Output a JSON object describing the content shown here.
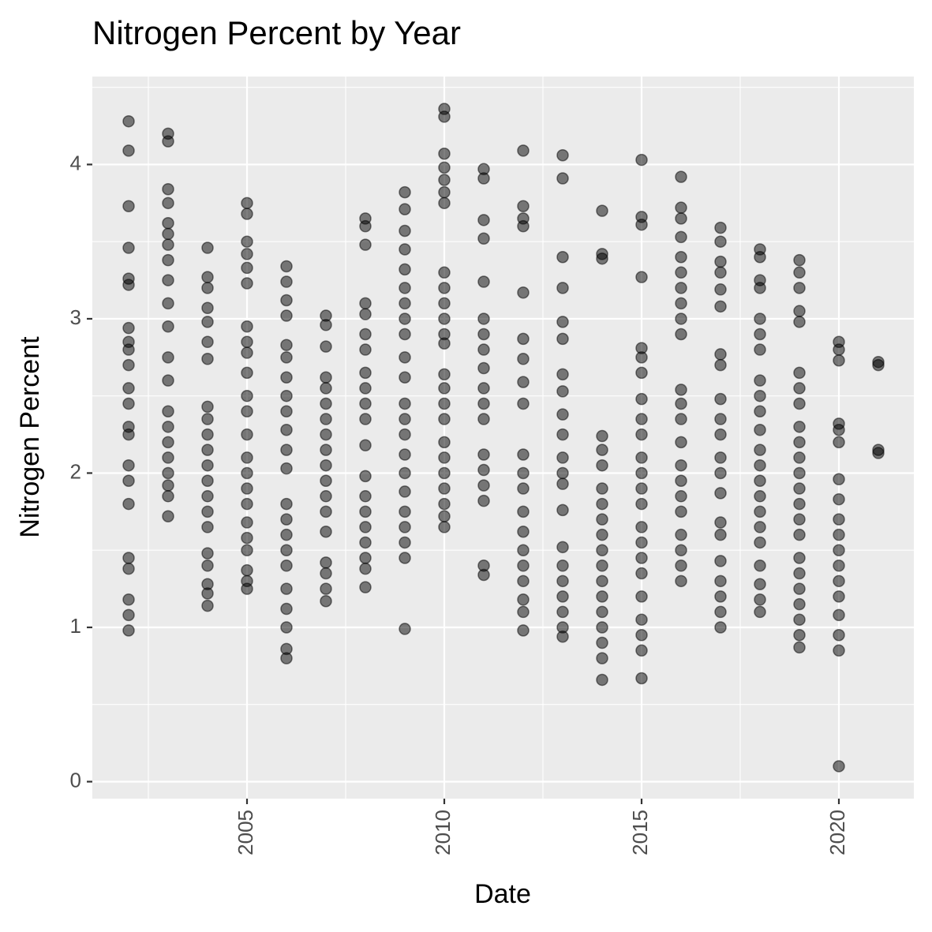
{
  "chart_data": {
    "type": "scatter",
    "title": "Nitrogen Percent by Year",
    "x_label": "Date",
    "y_label": "Nitrogen Percent",
    "color": "#000000",
    "opacity": 0.5,
    "grid": true,
    "xlim": [
      2001.08,
      2021.9
    ],
    "xticks": [
      2005,
      2010,
      2015,
      2020
    ],
    "ylim": [
      -0.11,
      4.57
    ],
    "yticks": [
      0,
      1,
      2,
      3,
      4
    ],
    "x": [
      2002,
      2002,
      2002,
      2002,
      2002,
      2002,
      2002,
      2002,
      2002,
      2002,
      2002,
      2002,
      2002,
      2002,
      2002,
      2002,
      2002,
      2002,
      2002,
      2002,
      2002,
      2002,
      2003,
      2003,
      2003,
      2003,
      2003,
      2003,
      2003,
      2003,
      2003,
      2003,
      2003,
      2003,
      2003,
      2003,
      2003,
      2003,
      2003,
      2003,
      2003,
      2003,
      2003,
      2004,
      2004,
      2004,
      2004,
      2004,
      2004,
      2004,
      2004,
      2004,
      2004,
      2004,
      2004,
      2004,
      2004,
      2004,
      2004,
      2004,
      2004,
      2004,
      2004,
      2004,
      2005,
      2005,
      2005,
      2005,
      2005,
      2005,
      2005,
      2005,
      2005,
      2005,
      2005,
      2005,
      2005,
      2005,
      2005,
      2005,
      2005,
      2005,
      2005,
      2005,
      2005,
      2005,
      2005,
      2006,
      2006,
      2006,
      2006,
      2006,
      2006,
      2006,
      2006,
      2006,
      2006,
      2006,
      2006,
      2006,
      2006,
      2006,
      2006,
      2006,
      2006,
      2006,
      2006,
      2006,
      2006,
      2007,
      2007,
      2007,
      2007,
      2007,
      2007,
      2007,
      2007,
      2007,
      2007,
      2007,
      2007,
      2007,
      2007,
      2007,
      2007,
      2007,
      2007,
      2008,
      2008,
      2008,
      2008,
      2008,
      2008,
      2008,
      2008,
      2008,
      2008,
      2008,
      2008,
      2008,
      2008,
      2008,
      2008,
      2008,
      2008,
      2008,
      2008,
      2009,
      2009,
      2009,
      2009,
      2009,
      2009,
      2009,
      2009,
      2009,
      2009,
      2009,
      2009,
      2009,
      2009,
      2009,
      2009,
      2009,
      2009,
      2009,
      2009,
      2009,
      2009,
      2010,
      2010,
      2010,
      2010,
      2010,
      2010,
      2010,
      2010,
      2010,
      2010,
      2010,
      2010,
      2010,
      2010,
      2010,
      2010,
      2010,
      2010,
      2010,
      2010,
      2010,
      2010,
      2010,
      2010,
      2011,
      2011,
      2011,
      2011,
      2011,
      2011,
      2011,
      2011,
      2011,
      2011,
      2011,
      2011,
      2011,
      2011,
      2011,
      2011,
      2011,
      2011,
      2012,
      2012,
      2012,
      2012,
      2012,
      2012,
      2012,
      2012,
      2012,
      2012,
      2012,
      2012,
      2012,
      2012,
      2012,
      2012,
      2012,
      2012,
      2012,
      2012,
      2013,
      2013,
      2013,
      2013,
      2013,
      2013,
      2013,
      2013,
      2013,
      2013,
      2013,
      2013,
      2013,
      2013,
      2013,
      2013,
      2013,
      2013,
      2013,
      2013,
      2013,
      2014,
      2014,
      2014,
      2014,
      2014,
      2014,
      2014,
      2014,
      2014,
      2014,
      2014,
      2014,
      2014,
      2014,
      2014,
      2014,
      2014,
      2014,
      2014,
      2015,
      2015,
      2015,
      2015,
      2015,
      2015,
      2015,
      2015,
      2015,
      2015,
      2015,
      2015,
      2015,
      2015,
      2015,
      2015,
      2015,
      2015,
      2015,
      2015,
      2015,
      2015,
      2015,
      2016,
      2016,
      2016,
      2016,
      2016,
      2016,
      2016,
      2016,
      2016,
      2016,
      2016,
      2016,
      2016,
      2016,
      2016,
      2016,
      2016,
      2016,
      2016,
      2016,
      2016,
      2016,
      2017,
      2017,
      2017,
      2017,
      2017,
      2017,
      2017,
      2017,
      2017,
      2017,
      2017,
      2017,
      2017,
      2017,
      2017,
      2017,
      2017,
      2017,
      2017,
      2017,
      2017,
      2018,
      2018,
      2018,
      2018,
      2018,
      2018,
      2018,
      2018,
      2018,
      2018,
      2018,
      2018,
      2018,
      2018,
      2018,
      2018,
      2018,
      2018,
      2018,
      2018,
      2018,
      2018,
      2019,
      2019,
      2019,
      2019,
      2019,
      2019,
      2019,
      2019,
      2019,
      2019,
      2019,
      2019,
      2019,
      2019,
      2019,
      2019,
      2019,
      2019,
      2019,
      2019,
      2019,
      2019,
      2019,
      2020,
      2020,
      2020,
      2020,
      2020,
      2020,
      2020,
      2020,
      2020,
      2020,
      2020,
      2020,
      2020,
      2020,
      2020,
      2020,
      2020,
      2020,
      2021,
      2021,
      2021,
      2021
    ],
    "values": [
      4.28,
      4.09,
      3.73,
      3.46,
      3.26,
      3.22,
      2.94,
      2.85,
      2.8,
      2.7,
      2.55,
      2.45,
      2.3,
      2.25,
      2.05,
      1.95,
      1.8,
      1.45,
      1.38,
      1.18,
      1.08,
      0.98,
      4.2,
      4.15,
      3.84,
      3.75,
      3.62,
      3.55,
      3.48,
      3.38,
      3.25,
      3.1,
      2.95,
      2.75,
      2.6,
      2.4,
      2.3,
      2.2,
      2.1,
      2.0,
      1.92,
      1.85,
      1.72,
      3.46,
      3.27,
      3.2,
      3.07,
      2.98,
      2.85,
      2.74,
      2.43,
      2.35,
      2.25,
      2.15,
      2.05,
      1.95,
      1.85,
      1.75,
      1.65,
      1.48,
      1.4,
      1.28,
      1.22,
      1.14,
      3.75,
      3.68,
      3.5,
      3.42,
      3.33,
      3.23,
      2.95,
      2.85,
      2.78,
      2.65,
      2.5,
      2.4,
      2.25,
      2.1,
      2.0,
      1.9,
      1.8,
      1.68,
      1.58,
      1.5,
      1.37,
      1.3,
      1.25,
      3.34,
      3.24,
      3.12,
      3.02,
      2.83,
      2.75,
      2.62,
      2.5,
      2.4,
      2.28,
      2.15,
      2.03,
      1.8,
      1.7,
      1.6,
      1.5,
      1.4,
      1.25,
      1.12,
      1.0,
      0.86,
      0.8,
      3.02,
      2.96,
      2.82,
      2.62,
      2.55,
      2.45,
      2.35,
      2.25,
      2.15,
      2.05,
      1.95,
      1.85,
      1.75,
      1.62,
      1.42,
      1.35,
      1.25,
      1.17,
      3.65,
      3.6,
      3.48,
      3.1,
      3.03,
      2.9,
      2.8,
      2.65,
      2.55,
      2.45,
      2.35,
      2.18,
      1.98,
      1.85,
      1.75,
      1.65,
      1.55,
      1.45,
      1.38,
      1.26,
      3.82,
      3.71,
      3.57,
      3.45,
      3.32,
      3.2,
      3.1,
      3.0,
      2.9,
      2.75,
      2.62,
      2.45,
      2.35,
      2.25,
      2.12,
      2.0,
      1.88,
      1.75,
      1.65,
      1.55,
      1.45,
      0.99,
      4.36,
      4.31,
      4.07,
      3.98,
      3.9,
      3.82,
      3.75,
      3.3,
      3.2,
      3.1,
      3.0,
      2.9,
      2.84,
      2.64,
      2.55,
      2.45,
      2.35,
      2.2,
      2.1,
      2.0,
      1.9,
      1.8,
      1.72,
      1.65,
      3.97,
      3.91,
      3.64,
      3.52,
      3.24,
      3.0,
      2.9,
      2.8,
      2.68,
      2.55,
      2.45,
      2.35,
      2.12,
      2.02,
      1.92,
      1.82,
      1.4,
      1.34,
      4.09,
      3.73,
      3.65,
      3.6,
      3.17,
      2.87,
      2.74,
      2.59,
      2.45,
      2.12,
      2.0,
      1.9,
      1.75,
      1.62,
      1.5,
      1.4,
      1.3,
      1.18,
      1.1,
      0.98,
      4.06,
      3.91,
      3.4,
      3.2,
      2.98,
      2.87,
      2.64,
      2.53,
      2.38,
      2.25,
      2.1,
      2.0,
      1.93,
      1.76,
      1.52,
      1.4,
      1.3,
      1.2,
      1.1,
      1.0,
      0.94,
      3.7,
      3.42,
      3.39,
      2.24,
      2.15,
      2.05,
      1.9,
      1.8,
      1.7,
      1.6,
      1.5,
      1.4,
      1.3,
      1.2,
      1.1,
      1.0,
      0.9,
      0.8,
      0.66,
      4.03,
      3.66,
      3.61,
      3.27,
      2.81,
      2.75,
      2.65,
      2.48,
      2.35,
      2.25,
      2.1,
      2.0,
      1.9,
      1.8,
      1.65,
      1.55,
      1.45,
      1.35,
      1.2,
      1.05,
      0.95,
      0.85,
      0.67,
      3.92,
      3.72,
      3.65,
      3.53,
      3.4,
      3.3,
      3.2,
      3.1,
      3.0,
      2.9,
      2.54,
      2.45,
      2.35,
      2.2,
      2.05,
      1.95,
      1.85,
      1.75,
      1.6,
      1.5,
      1.4,
      1.3,
      3.59,
      3.5,
      3.37,
      3.3,
      3.19,
      3.08,
      2.77,
      2.7,
      2.48,
      2.35,
      2.25,
      2.1,
      2.0,
      1.87,
      1.68,
      1.6,
      1.43,
      1.3,
      1.2,
      1.1,
      1.0,
      3.45,
      3.4,
      3.25,
      3.2,
      3.0,
      2.9,
      2.8,
      2.6,
      2.5,
      2.4,
      2.28,
      2.15,
      2.05,
      1.95,
      1.85,
      1.75,
      1.65,
      1.55,
      1.4,
      1.28,
      1.18,
      1.1,
      3.38,
      3.3,
      3.2,
      3.05,
      2.98,
      2.65,
      2.55,
      2.45,
      2.3,
      2.2,
      2.1,
      2.0,
      1.9,
      1.8,
      1.7,
      1.6,
      1.45,
      1.35,
      1.25,
      1.15,
      1.05,
      0.95,
      0.87,
      2.85,
      2.8,
      2.73,
      2.32,
      2.28,
      2.2,
      1.96,
      1.83,
      1.7,
      1.6,
      1.5,
      1.4,
      1.3,
      1.2,
      1.08,
      0.95,
      0.85,
      0.1,
      2.72,
      2.7,
      2.15,
      2.13
    ]
  }
}
